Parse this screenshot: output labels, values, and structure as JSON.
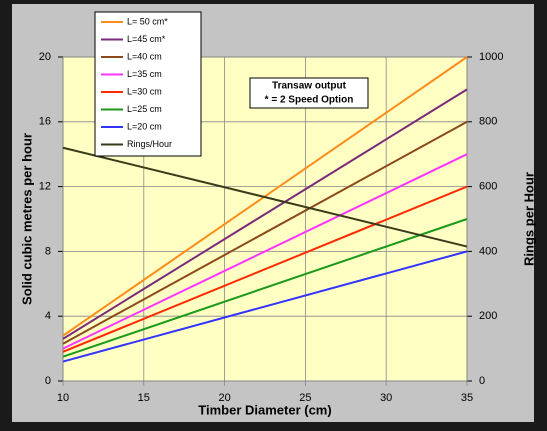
{
  "chart_data": {
    "type": "line",
    "x_label": "Timber Diameter (cm)",
    "y_label": "Solid cubic metres per hour",
    "y2_label": "Rings per Hour",
    "annotation": [
      "Transaw output",
      "* = 2 Speed Option"
    ],
    "x": [
      10,
      35
    ],
    "xlim": [
      10,
      35
    ],
    "xticks": [
      10,
      15,
      20,
      25,
      30,
      35
    ],
    "ylim": [
      0,
      20
    ],
    "yticks": [
      0,
      4,
      8,
      12,
      16,
      20
    ],
    "y2lim": [
      0,
      1000
    ],
    "y2ticks": [
      0,
      200,
      400,
      600,
      800,
      1000
    ],
    "legend": "upper left",
    "series": [
      {
        "name": "L= 50 cm*",
        "color": "#ff8c1a",
        "values": [
          2.8,
          20
        ]
      },
      {
        "name": "L=45 cm*",
        "color": "#7a2a7a",
        "values": [
          2.6,
          18
        ]
      },
      {
        "name": "L=40 cm",
        "color": "#8b4a1a",
        "values": [
          2.3,
          16
        ]
      },
      {
        "name": "L=35 cm",
        "color": "#ff33ff",
        "values": [
          2.0,
          14
        ]
      },
      {
        "name": "L=30 cm",
        "color": "#ff2a00",
        "values": [
          1.8,
          12
        ]
      },
      {
        "name": "L=25 cm",
        "color": "#1a9a1a",
        "values": [
          1.5,
          10
        ]
      },
      {
        "name": "L=20 cm",
        "color": "#3333ff",
        "values": [
          1.2,
          8
        ]
      },
      {
        "name": "Rings/Hour",
        "color": "#3a3a1a",
        "axis": "y2",
        "values": [
          720,
          415
        ]
      }
    ]
  }
}
